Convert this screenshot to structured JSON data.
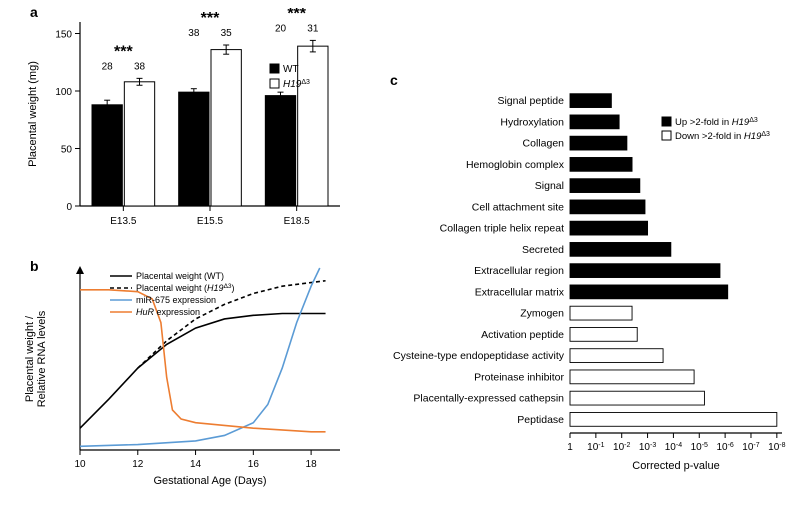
{
  "panel_a": {
    "label": "a",
    "type": "bar",
    "title_fontsize": 14,
    "ylabel": "Placental weight (mg)",
    "label_fontsize": 11,
    "categories": [
      "E13.5",
      "E15.5",
      "E18.5"
    ],
    "series": [
      {
        "name": "WT",
        "color": "#000000",
        "values": [
          88,
          99,
          96
        ],
        "err": [
          4,
          3,
          3
        ],
        "n": [
          28,
          38,
          20
        ]
      },
      {
        "name": "H19Δ3",
        "color": "#ffffff",
        "values": [
          108,
          136,
          139
        ],
        "err": [
          3,
          4,
          5
        ],
        "n": [
          38,
          35,
          31
        ]
      }
    ],
    "significance": [
      "***",
      "***",
      "***"
    ],
    "ylim": [
      0,
      160
    ],
    "ytick_step": 50,
    "background_color": "#ffffff",
    "axis_color": "#000000",
    "bar_stroke": "#000000",
    "bar_width": 0.35,
    "font_color": "#000000",
    "sig_fontsize": 16,
    "n_fontsize": 10,
    "tick_fontsize": 10,
    "legend_items": [
      {
        "label": "WT",
        "fill": "#000000",
        "plain": true
      },
      {
        "label": "H19",
        "sup": "Δ3",
        "fill": "#ffffff",
        "plain": false
      }
    ]
  },
  "panel_b": {
    "label": "b",
    "type": "line",
    "xlabel": "Gestational Age (Days)",
    "ylabel": "Placental weight /\nRelative RNA levels",
    "label_fontsize": 11,
    "tick_fontsize": 10,
    "xlim": [
      10,
      19
    ],
    "xtick_step": 2,
    "ylim": [
      0,
      1
    ],
    "axis_color": "#000000",
    "lines": [
      {
        "name": "Placental weight (WT)",
        "color": "#000000",
        "dash": "none",
        "italic_part": "",
        "points": [
          [
            10,
            0.12
          ],
          [
            11,
            0.28
          ],
          [
            12,
            0.45
          ],
          [
            13,
            0.58
          ],
          [
            14,
            0.67
          ],
          [
            15,
            0.72
          ],
          [
            16,
            0.74
          ],
          [
            17,
            0.75
          ],
          [
            18,
            0.75
          ],
          [
            18.5,
            0.75
          ]
        ]
      },
      {
        "name": "Placental weight (H19Δ3)",
        "color": "#000000",
        "dash": "4,3",
        "italic_part": "H19",
        "points": [
          [
            12,
            0.45
          ],
          [
            13,
            0.6
          ],
          [
            14,
            0.72
          ],
          [
            15,
            0.8
          ],
          [
            16,
            0.86
          ],
          [
            17,
            0.9
          ],
          [
            18,
            0.92
          ],
          [
            18.5,
            0.93
          ]
        ]
      },
      {
        "name": "miR-675 expression",
        "color": "#5b9bd5",
        "dash": "none",
        "italic_part": "",
        "points": [
          [
            10,
            0.02
          ],
          [
            12,
            0.03
          ],
          [
            14,
            0.05
          ],
          [
            15,
            0.08
          ],
          [
            16,
            0.15
          ],
          [
            16.5,
            0.25
          ],
          [
            17,
            0.45
          ],
          [
            17.5,
            0.7
          ],
          [
            18,
            0.9
          ],
          [
            18.3,
            1.0
          ]
        ]
      },
      {
        "name": "HuR expression",
        "color": "#ed7d31",
        "dash": "none",
        "italic_part": "HuR",
        "points": [
          [
            10,
            0.88
          ],
          [
            11,
            0.88
          ],
          [
            12,
            0.87
          ],
          [
            12.5,
            0.83
          ],
          [
            12.8,
            0.7
          ],
          [
            13,
            0.4
          ],
          [
            13.2,
            0.22
          ],
          [
            13.5,
            0.17
          ],
          [
            14,
            0.15
          ],
          [
            16,
            0.12
          ],
          [
            18,
            0.1
          ],
          [
            18.5,
            0.1
          ]
        ]
      }
    ]
  },
  "panel_c": {
    "label": "c",
    "type": "bar-horizontal-log",
    "xlabel": "Corrected p-value",
    "label_fontsize": 11,
    "tick_fontsize": 10,
    "xlim_log": [
      0,
      8.2
    ],
    "xtick_labels": [
      "1",
      "10⁻¹",
      "10⁻²",
      "10⁻³",
      "10⁻⁴",
      "10⁻⁵",
      "10⁻⁶",
      "10⁻⁷",
      "10⁻⁸"
    ],
    "xtick_pos": [
      0,
      1,
      2,
      3,
      4,
      5,
      6,
      7,
      8
    ],
    "axis_color": "#000000",
    "bar_stroke": "#000000",
    "bar_height": 0.65,
    "items": [
      {
        "label": "Signal peptide",
        "group": "up",
        "neglog10p": 1.6
      },
      {
        "label": "Hydroxylation",
        "group": "up",
        "neglog10p": 1.9
      },
      {
        "label": "Collagen",
        "group": "up",
        "neglog10p": 2.2
      },
      {
        "label": "Hemoglobin complex",
        "group": "up",
        "neglog10p": 2.4
      },
      {
        "label": "Signal",
        "group": "up",
        "neglog10p": 2.7
      },
      {
        "label": "Cell attachment site",
        "group": "up",
        "neglog10p": 2.9
      },
      {
        "label": "Collagen triple helix repeat",
        "group": "up",
        "neglog10p": 3.0
      },
      {
        "label": "Secreted",
        "group": "up",
        "neglog10p": 3.9
      },
      {
        "label": "Extracellular region",
        "group": "up",
        "neglog10p": 5.8
      },
      {
        "label": "Extracellular matrix",
        "group": "up",
        "neglog10p": 6.1
      },
      {
        "label": "Zymogen",
        "group": "down",
        "neglog10p": 2.4
      },
      {
        "label": "Activation peptide",
        "group": "down",
        "neglog10p": 2.6
      },
      {
        "label": "Cysteine-type endopeptidase activity",
        "group": "down",
        "neglog10p": 3.6
      },
      {
        "label": "Proteinase inhibitor",
        "group": "down",
        "neglog10p": 4.8
      },
      {
        "label": "Placentally-expressed cathepsin",
        "group": "down",
        "neglog10p": 5.2
      },
      {
        "label": "Peptidase",
        "group": "down",
        "neglog10p": 8.0
      }
    ],
    "group_colors": {
      "up": "#000000",
      "down": "#ffffff"
    },
    "legend_items": [
      {
        "label_prefix": "Up >2-fold in ",
        "italic": "H19",
        "sup": "Δ3",
        "fill": "#000000"
      },
      {
        "label_prefix": "Down >2-fold in ",
        "italic": "H19",
        "sup": "Δ3",
        "fill": "#ffffff"
      }
    ]
  }
}
